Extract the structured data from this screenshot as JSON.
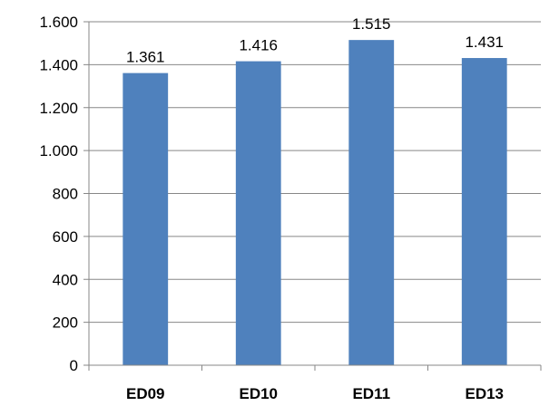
{
  "chart_data": {
    "type": "bar",
    "title": "",
    "xlabel": "",
    "ylabel": "",
    "categories": [
      "ED09",
      "ED10",
      "ED11",
      "ED13"
    ],
    "values": [
      1361,
      1416,
      1515,
      1431
    ],
    "value_labels": [
      "1.361",
      "1.416",
      "1.515",
      "1.431"
    ],
    "ylim": [
      0,
      1600
    ],
    "yticks": [
      0,
      200,
      400,
      600,
      800,
      1000,
      1200,
      1400,
      1600
    ],
    "ytick_labels": [
      "0",
      "200",
      "400",
      "600",
      "800",
      "1.000",
      "1.200",
      "1.400",
      "1.600"
    ],
    "grid": true,
    "legend": "none",
    "bar_color": "#4f81bd",
    "grid_color": "#878787"
  }
}
